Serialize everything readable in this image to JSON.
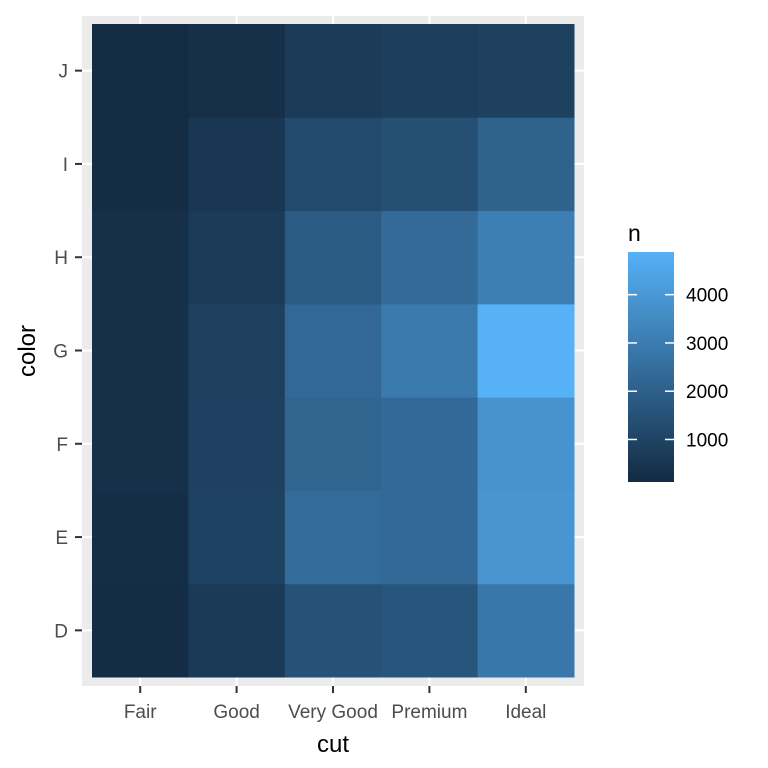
{
  "chart_data": {
    "type": "heatmap",
    "xlabel": "cut",
    "ylabel": "color",
    "x_categories": [
      "Fair",
      "Good",
      "Very Good",
      "Premium",
      "Ideal"
    ],
    "y_categories": [
      "D",
      "E",
      "F",
      "G",
      "H",
      "I",
      "J"
    ],
    "values": [
      [
        163,
        662,
        1513,
        1603,
        2834
      ],
      [
        224,
        933,
        2400,
        2337,
        3903
      ],
      [
        312,
        909,
        2164,
        2331,
        3826
      ],
      [
        314,
        871,
        2299,
        2924,
        4884
      ],
      [
        303,
        702,
        1824,
        2360,
        3115
      ],
      [
        175,
        522,
        1204,
        1428,
        2093
      ],
      [
        119,
        307,
        678,
        808,
        896
      ]
    ],
    "legend": {
      "title": "n",
      "ticks": [
        1000,
        2000,
        3000,
        4000
      ],
      "range": [
        119,
        4884
      ],
      "colors": {
        "low": "#132B43",
        "high": "#56B1F7"
      }
    },
    "panel_background": "#EBEBEB",
    "grid": true
  }
}
